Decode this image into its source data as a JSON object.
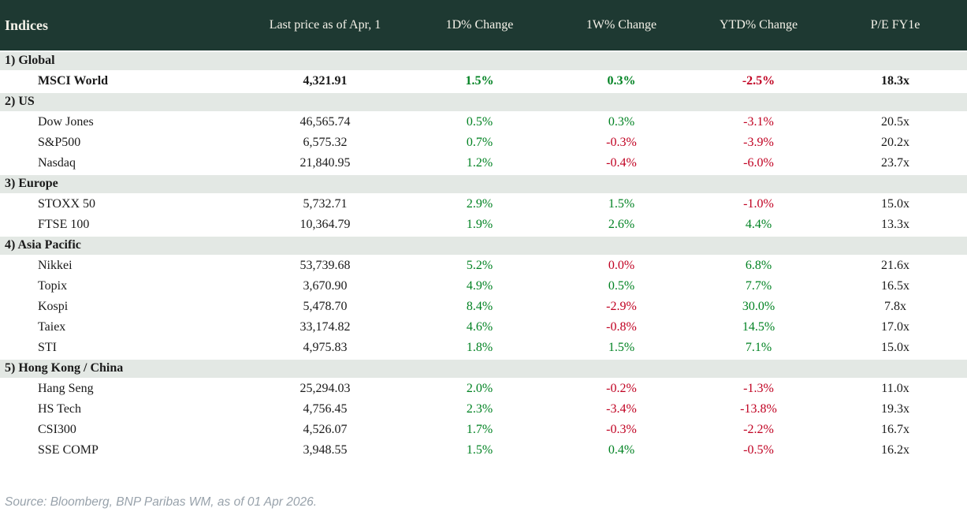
{
  "colors": {
    "positive": "#008222",
    "negative": "#c00021",
    "header_bg": "#1e3932",
    "section_bg": "#e3e8e4"
  },
  "table": {
    "title": "Indices",
    "columns": {
      "price": "Last price as of Apr, 1",
      "d1": "1D% Change",
      "w1": "1W% Change",
      "ytd": "YTD% Change",
      "pe": "P/E FY1e"
    },
    "sections": [
      {
        "label": "1) Global",
        "rows": [
          {
            "name": "MSCI World",
            "bold": true,
            "price": "4,321.91",
            "d1": {
              "v": "1.5%",
              "dir": "up"
            },
            "w1": {
              "v": "0.3%",
              "dir": "up"
            },
            "ytd": {
              "v": "-2.5%",
              "dir": "down"
            },
            "pe": "18.3x"
          }
        ]
      },
      {
        "label": "2) US",
        "rows": [
          {
            "name": "Dow Jones",
            "bold": false,
            "price": "46,565.74",
            "d1": {
              "v": "0.5%",
              "dir": "up"
            },
            "w1": {
              "v": "0.3%",
              "dir": "up"
            },
            "ytd": {
              "v": "-3.1%",
              "dir": "down"
            },
            "pe": "20.5x"
          },
          {
            "name": "S&P500",
            "bold": false,
            "price": "6,575.32",
            "d1": {
              "v": "0.7%",
              "dir": "up"
            },
            "w1": {
              "v": "-0.3%",
              "dir": "down"
            },
            "ytd": {
              "v": "-3.9%",
              "dir": "down"
            },
            "pe": "20.2x"
          },
          {
            "name": "Nasdaq",
            "bold": false,
            "price": "21,840.95",
            "d1": {
              "v": "1.2%",
              "dir": "up"
            },
            "w1": {
              "v": "-0.4%",
              "dir": "down"
            },
            "ytd": {
              "v": "-6.0%",
              "dir": "down"
            },
            "pe": "23.7x"
          }
        ]
      },
      {
        "label": "3) Europe",
        "rows": [
          {
            "name": "STOXX 50",
            "bold": false,
            "price": "5,732.71",
            "d1": {
              "v": "2.9%",
              "dir": "up"
            },
            "w1": {
              "v": "1.5%",
              "dir": "up"
            },
            "ytd": {
              "v": "-1.0%",
              "dir": "down"
            },
            "pe": "15.0x"
          },
          {
            "name": "FTSE 100",
            "bold": false,
            "price": "10,364.79",
            "d1": {
              "v": "1.9%",
              "dir": "up"
            },
            "w1": {
              "v": "2.6%",
              "dir": "up"
            },
            "ytd": {
              "v": "4.4%",
              "dir": "up"
            },
            "pe": "13.3x"
          }
        ]
      },
      {
        "label": "4) Asia Pacific",
        "rows": [
          {
            "name": "Nikkei",
            "bold": false,
            "price": "53,739.68",
            "d1": {
              "v": "5.2%",
              "dir": "up"
            },
            "w1": {
              "v": "0.0%",
              "dir": "down"
            },
            "ytd": {
              "v": "6.8%",
              "dir": "up"
            },
            "pe": "21.6x"
          },
          {
            "name": "Topix",
            "bold": false,
            "price": "3,670.90",
            "d1": {
              "v": "4.9%",
              "dir": "up"
            },
            "w1": {
              "v": "0.5%",
              "dir": "up"
            },
            "ytd": {
              "v": "7.7%",
              "dir": "up"
            },
            "pe": "16.5x"
          },
          {
            "name": "Kospi",
            "bold": false,
            "price": "5,478.70",
            "d1": {
              "v": "8.4%",
              "dir": "up"
            },
            "w1": {
              "v": "-2.9%",
              "dir": "down"
            },
            "ytd": {
              "v": "30.0%",
              "dir": "up"
            },
            "pe": "7.8x"
          },
          {
            "name": "Taiex",
            "bold": false,
            "price": "33,174.82",
            "d1": {
              "v": "4.6%",
              "dir": "up"
            },
            "w1": {
              "v": "-0.8%",
              "dir": "down"
            },
            "ytd": {
              "v": "14.5%",
              "dir": "up"
            },
            "pe": "17.0x"
          },
          {
            "name": "STI",
            "bold": false,
            "price": "4,975.83",
            "d1": {
              "v": "1.8%",
              "dir": "up"
            },
            "w1": {
              "v": "1.5%",
              "dir": "up"
            },
            "ytd": {
              "v": "7.1%",
              "dir": "up"
            },
            "pe": "15.0x"
          }
        ]
      },
      {
        "label": "5) Hong Kong / China",
        "rows": [
          {
            "name": "Hang Seng",
            "bold": false,
            "price": "25,294.03",
            "d1": {
              "v": "2.0%",
              "dir": "up"
            },
            "w1": {
              "v": "-0.2%",
              "dir": "down"
            },
            "ytd": {
              "v": "-1.3%",
              "dir": "down"
            },
            "pe": "11.0x"
          },
          {
            "name": "HS Tech",
            "bold": false,
            "price": "4,756.45",
            "d1": {
              "v": "2.3%",
              "dir": "up"
            },
            "w1": {
              "v": "-3.4%",
              "dir": "down"
            },
            "ytd": {
              "v": "-13.8%",
              "dir": "down"
            },
            "pe": "19.3x"
          },
          {
            "name": "CSI300",
            "bold": false,
            "price": "4,526.07",
            "d1": {
              "v": "1.7%",
              "dir": "up"
            },
            "w1": {
              "v": "-0.3%",
              "dir": "down"
            },
            "ytd": {
              "v": "-2.2%",
              "dir": "down"
            },
            "pe": "16.7x"
          },
          {
            "name": "SSE COMP",
            "bold": false,
            "price": "3,948.55",
            "d1": {
              "v": "1.5%",
              "dir": "up"
            },
            "w1": {
              "v": "0.4%",
              "dir": "up"
            },
            "ytd": {
              "v": "-0.5%",
              "dir": "down"
            },
            "pe": "16.2x"
          }
        ]
      }
    ]
  },
  "footer": {
    "source": "Source: Bloomberg, BNP Paribas WM, as of 01 Apr 2026."
  }
}
